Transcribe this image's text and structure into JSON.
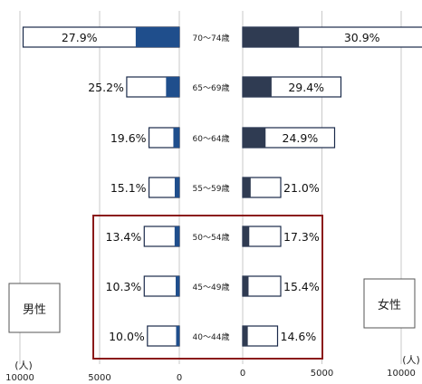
{
  "chart_data": {
    "type": "bar",
    "layout": "population-pyramid",
    "unit": "(人)",
    "categories": [
      "70〜74歳",
      "65〜69歳",
      "60〜64歳",
      "55〜59歳",
      "50〜54歳",
      "45〜49歳",
      "40〜44歳"
    ],
    "series": [
      {
        "name": "男性",
        "side": "left",
        "totals": [
          9800,
          3300,
          1900,
          1900,
          2200,
          2200,
          2000
        ],
        "percent_labels": [
          "27.9%",
          "25.2%",
          "19.6%",
          "15.1%",
          "13.4%",
          "10.3%",
          "10.0%"
        ],
        "shaded_fraction": [
          0.279,
          0.252,
          0.196,
          0.151,
          0.134,
          0.103,
          0.1
        ]
      },
      {
        "name": "女性",
        "side": "right",
        "totals": [
          11500,
          6200,
          5800,
          2400,
          2400,
          2400,
          2200
        ],
        "percent_labels": [
          "30.9%",
          "29.4%",
          "24.9%",
          "21.0%",
          "17.3%",
          "15.4%",
          "14.6%"
        ],
        "shaded_fraction": [
          0.309,
          0.294,
          0.249,
          0.21,
          0.173,
          0.154,
          0.146
        ]
      }
    ],
    "male_axis": {
      "range": [
        0,
        10000
      ],
      "ticks": [
        "10000",
        "5000",
        "0"
      ]
    },
    "female_axis": {
      "range": [
        0,
        10000
      ],
      "ticks": [
        "0",
        "5000",
        "10000"
      ]
    },
    "highlight_categories": [
      "50〜54歳",
      "45〜49歳",
      "40〜44歳"
    ],
    "grid": true,
    "colors": {
      "male_fill": "#1f4e8c",
      "female_fill": "#2f3b52",
      "bar_border": "#1a2a4a",
      "highlight_border": "#8b1a1a",
      "grid": "#c8c8c8"
    }
  }
}
